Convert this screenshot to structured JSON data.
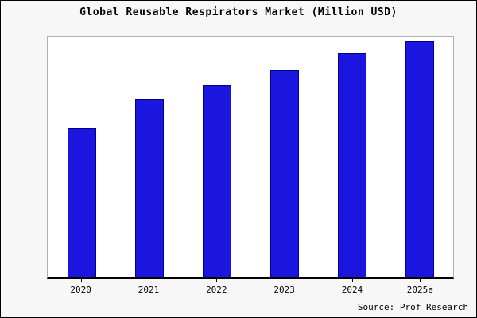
{
  "title": "Global Reusable Respirators Market (Million USD)",
  "source": "Source: Prof Research",
  "colors": {
    "bar_fill": "#1a16e0",
    "bar_border": "#00008b",
    "outer_background": "#f7f7f7",
    "plot_background": "#ffffff",
    "axis": "#000000"
  },
  "chart_data": {
    "type": "bar",
    "title": "Global Reusable Respirators Market (Million USD)",
    "categories": [
      "2020",
      "2021",
      "2022",
      "2023",
      "2024",
      "2025e"
    ],
    "values": [
      62,
      74,
      80,
      86,
      93,
      98
    ],
    "xlabel": "",
    "ylabel": "",
    "ylim": [
      0,
      100
    ],
    "grid": false,
    "legend": false,
    "y_axis_labels_visible": false,
    "source_annotation": "Source: Prof Research"
  }
}
